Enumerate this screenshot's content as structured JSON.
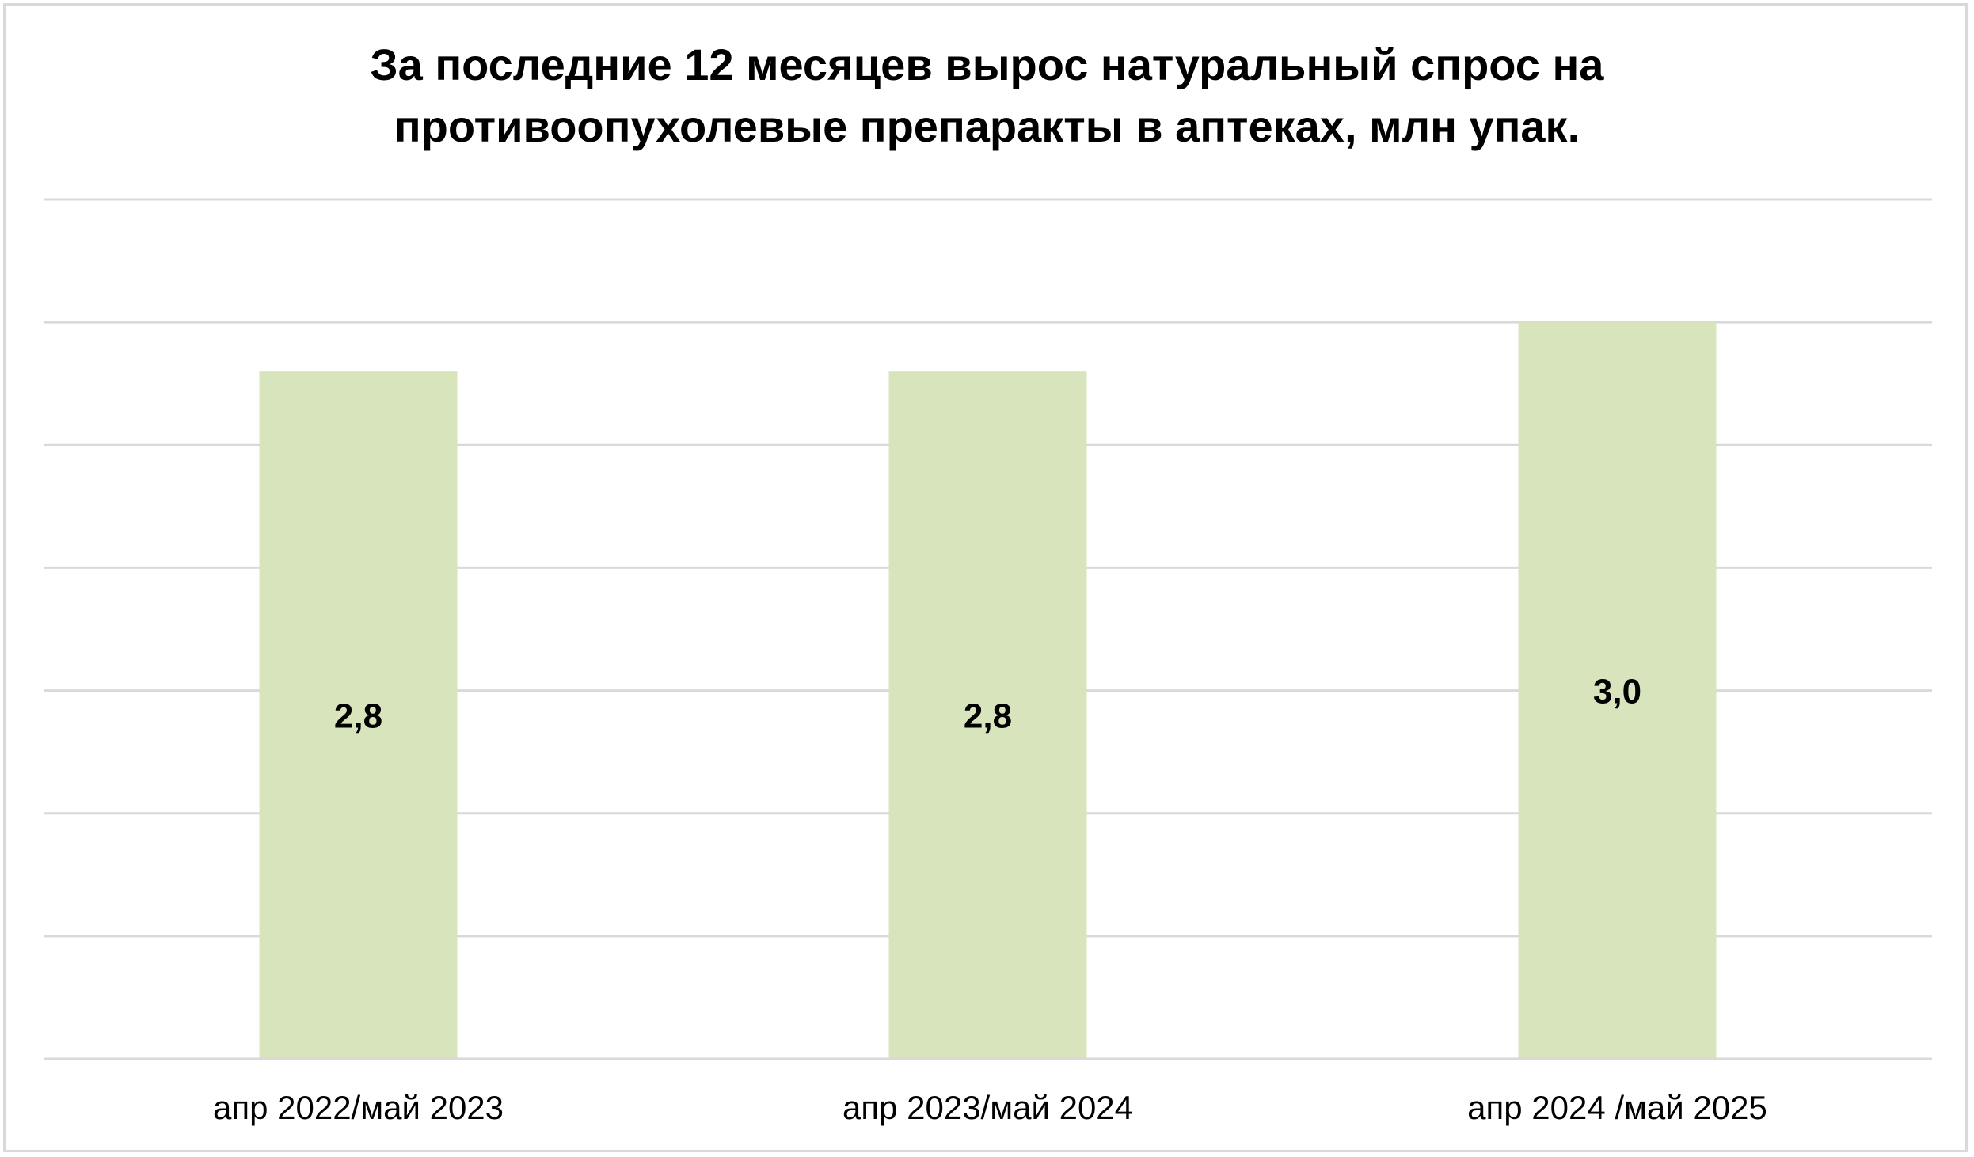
{
  "chart_data": {
    "type": "bar",
    "title_lines": [
      "За последние 12 месяцев вырос натуральный спрос на",
      "противоопухолевые препаракты в аптеках, млн упак."
    ],
    "categories": [
      "апр 2022/май 2023",
      "апр 2023/май 2024",
      "апр 2024 /май 2025"
    ],
    "values": [
      2.8,
      2.8,
      3.0
    ],
    "value_labels": [
      "2,8",
      "2,8",
      "3,0"
    ],
    "ylim": [
      0,
      3.5
    ],
    "grid": true,
    "xlabel": "",
    "ylabel": "",
    "colors": {
      "bar": "#d8e4bc",
      "grid": "#d9d9d9"
    }
  }
}
